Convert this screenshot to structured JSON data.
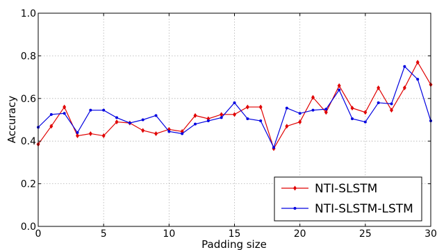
{
  "chart_data": {
    "type": "line",
    "xlabel": "Padding size",
    "ylabel": "Accuracy",
    "xlim": [
      0,
      30
    ],
    "ylim": [
      0.0,
      1.0
    ],
    "xticks": [
      0,
      5,
      10,
      15,
      20,
      25,
      30
    ],
    "yticks": [
      0.0,
      0.2,
      0.4,
      0.6,
      0.8,
      1.0
    ],
    "ytick_labels": [
      "0.0",
      "0.2",
      "0.4",
      "0.6",
      "0.8",
      "1.0"
    ],
    "grid": true,
    "legend_position": "bottom-right",
    "x": [
      0,
      1,
      2,
      3,
      4,
      5,
      6,
      7,
      8,
      9,
      10,
      11,
      12,
      13,
      14,
      15,
      16,
      17,
      18,
      19,
      20,
      21,
      22,
      23,
      24,
      25,
      26,
      27,
      28,
      29,
      30
    ],
    "series": [
      {
        "name": "NTI-SLSTM",
        "color": "#e00000",
        "marker": "diamond",
        "values": [
          0.385,
          0.47,
          0.56,
          0.425,
          0.435,
          0.425,
          0.49,
          0.485,
          0.45,
          0.435,
          0.455,
          0.445,
          0.52,
          0.505,
          0.525,
          0.525,
          0.56,
          0.56,
          0.365,
          0.47,
          0.49,
          0.605,
          0.535,
          0.66,
          0.555,
          0.535,
          0.65,
          0.545,
          0.65,
          0.77,
          0.665
        ]
      },
      {
        "name": "NTI-SLSTM-LSTM",
        "color": "#0000e0",
        "marker": "dot",
        "values": [
          0.465,
          0.525,
          0.53,
          0.44,
          0.545,
          0.545,
          0.51,
          0.485,
          0.5,
          0.52,
          0.445,
          0.435,
          0.48,
          0.495,
          0.51,
          0.58,
          0.505,
          0.495,
          0.37,
          0.555,
          0.53,
          0.545,
          0.55,
          0.64,
          0.505,
          0.49,
          0.58,
          0.575,
          0.75,
          0.69,
          0.495
        ]
      }
    ]
  }
}
